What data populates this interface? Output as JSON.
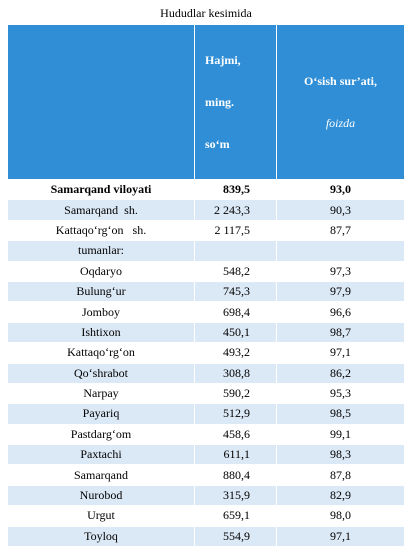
{
  "title": "Hududlar kesimida",
  "table": {
    "header": {
      "col2": [
        "Hajmi,",
        "ming.",
        "so‘m"
      ],
      "col3": [
        "O‘sish sur’ati,",
        "foizda"
      ]
    },
    "total": [
      "Samarqand viloyati",
      "839,5",
      "93,0"
    ],
    "rows": [
      [
        "Samarqand  sh.",
        "2 243,3",
        "90,3"
      ],
      [
        "Kattaqo‘rg‘on   sh.",
        "2 117,5",
        "87,7"
      ],
      [
        "tumanlar:",
        null,
        null
      ],
      [
        "Oqdaryo",
        "548,2",
        "97,3"
      ],
      [
        "Bulung‘ur",
        "745,3",
        "97,9"
      ],
      [
        "Jomboy",
        "698,4",
        "96,6"
      ],
      [
        "Ishtixon",
        "450,1",
        "98,7"
      ],
      [
        "Kattaqo‘rg‘on",
        "493,2",
        "97,1"
      ],
      [
        "Qo‘shrabot",
        "308,8",
        "86,2"
      ],
      [
        "Narpay",
        "590,2",
        "95,3"
      ],
      [
        "Payariq",
        "512,9",
        "98,5"
      ],
      [
        "Pastdarg‘om",
        "458,6",
        "99,1"
      ],
      [
        "Paxtachi",
        "611,1",
        "98,3"
      ],
      [
        "Samarqand",
        "880,4",
        "87,8"
      ],
      [
        "Nurobod",
        "315,9",
        "82,9"
      ],
      [
        "Urgut",
        "659,1",
        "98,0"
      ],
      [
        "Toyloq",
        "554,9",
        "97,1"
      ]
    ]
  }
}
